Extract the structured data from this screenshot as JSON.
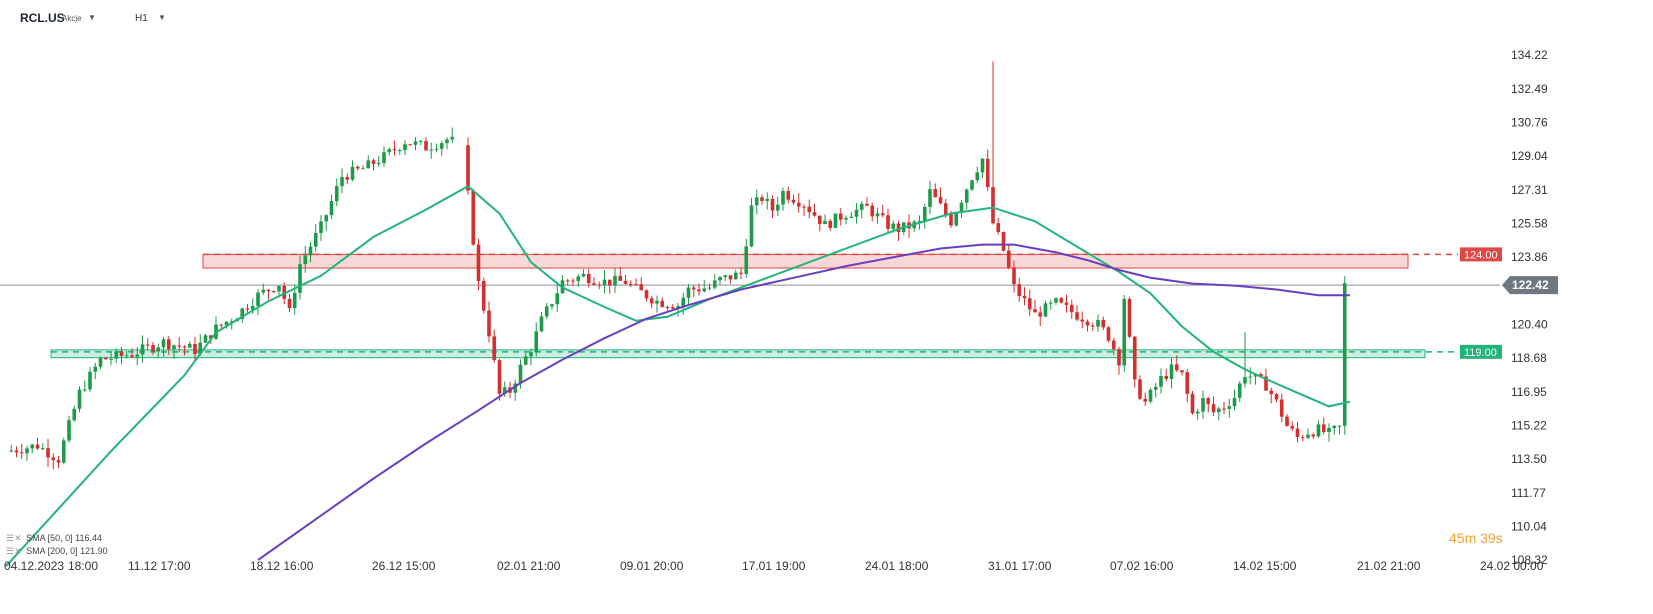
{
  "header": {
    "symbol": "RCL.US",
    "symbol_type": "Akcje",
    "timeframe": "H1"
  },
  "legend": [
    {
      "label": "SMA [50, 0] 116.44"
    },
    {
      "label": "SMA [200, 0] 121.90"
    }
  ],
  "timer": "45m 39s",
  "colors": {
    "up": "#1f9a4a",
    "down": "#d32f2f",
    "sma50": "#22b47a",
    "sma200": "#6a3fbf",
    "resistance": "#e04848",
    "support": "#22b47a",
    "price_tag": "#6f7780"
  },
  "chart_data": {
    "type": "candlestick",
    "ylim": [
      108.32,
      135.0
    ],
    "y_ticks": [
      "134.22",
      "132.49",
      "130.76",
      "129.04",
      "127.31",
      "125.58",
      "123.86",
      "122.42",
      "120.40",
      "118.68",
      "116.95",
      "115.22",
      "113.50",
      "111.77",
      "110.04",
      "108.32"
    ],
    "x_ticks": [
      "04.12.2023",
      "18:00",
      "11.12 17:00",
      "18.12 16:00",
      "26.12 15:00",
      "02.01 21:00",
      "09.01 20:00",
      "17.01 19:00",
      "24.01 18:00",
      "31.01 17:00",
      "07.02 16:00",
      "14.02 15:00",
      "21.02 21:00",
      "24.02 00:00"
    ],
    "current_price": "122.42",
    "levels": [
      {
        "label": "124.00",
        "value": 124.0,
        "zone": [
          123.3,
          124.0
        ],
        "kind": "resistance"
      },
      {
        "label": "119.00",
        "value": 119.0,
        "zone": [
          118.7,
          119.1
        ],
        "kind": "support"
      }
    ],
    "close_path": [
      [
        0,
        113.9
      ],
      [
        6,
        114.2
      ],
      [
        10,
        113.5
      ],
      [
        14,
        116.9
      ],
      [
        18,
        118.6
      ],
      [
        24,
        118.9
      ],
      [
        30,
        119.5
      ],
      [
        36,
        119.1
      ],
      [
        40,
        120.2
      ],
      [
        44,
        120.9
      ],
      [
        48,
        121.9
      ],
      [
        52,
        122.5
      ],
      [
        54,
        121.0
      ],
      [
        56,
        123.5
      ],
      [
        60,
        125.4
      ],
      [
        64,
        128.0
      ],
      [
        68,
        128.4
      ],
      [
        72,
        129.0
      ],
      [
        76,
        129.8
      ],
      [
        80,
        129.5
      ],
      [
        84,
        129.9
      ],
      [
        87,
        129.6
      ],
      [
        88,
        127.0
      ],
      [
        90,
        122.5
      ],
      [
        92,
        120.0
      ],
      [
        94,
        116.8
      ],
      [
        96,
        117.0
      ],
      [
        98,
        118.2
      ],
      [
        100,
        119.2
      ],
      [
        102,
        120.6
      ],
      [
        106,
        122.6
      ],
      [
        110,
        122.9
      ],
      [
        114,
        122.6
      ],
      [
        118,
        122.6
      ],
      [
        120,
        122.2
      ],
      [
        124,
        121.6
      ],
      [
        128,
        121.4
      ],
      [
        130,
        122.2
      ],
      [
        134,
        122.3
      ],
      [
        136,
        122.7
      ],
      [
        140,
        123.0
      ],
      [
        142,
        126.4
      ],
      [
        144,
        126.9
      ],
      [
        146,
        126.3
      ],
      [
        148,
        127.2
      ],
      [
        152,
        126.6
      ],
      [
        156,
        125.5
      ],
      [
        160,
        126.1
      ],
      [
        164,
        126.4
      ],
      [
        168,
        125.5
      ],
      [
        170,
        125.3
      ],
      [
        174,
        125.6
      ],
      [
        176,
        127.2
      ],
      [
        180,
        125.7
      ],
      [
        184,
        128.0
      ],
      [
        186,
        128.9
      ],
      [
        188,
        125.6
      ],
      [
        190,
        124.2
      ],
      [
        192,
        122.3
      ],
      [
        196,
        120.9
      ],
      [
        200,
        121.5
      ],
      [
        204,
        120.9
      ],
      [
        208,
        120.4
      ],
      [
        210,
        119.8
      ],
      [
        212,
        118.6
      ],
      [
        213,
        121.8
      ],
      [
        215,
        117.3
      ],
      [
        217,
        116.4
      ],
      [
        220,
        117.6
      ],
      [
        222,
        118.1
      ],
      [
        224,
        117.8
      ],
      [
        226,
        115.8
      ],
      [
        228,
        116.5
      ],
      [
        230,
        115.9
      ],
      [
        232,
        116.2
      ],
      [
        234,
        116.7
      ],
      [
        236,
        117.9
      ],
      [
        238,
        117.6
      ],
      [
        240,
        117.3
      ],
      [
        242,
        116.4
      ],
      [
        244,
        115.2
      ],
      [
        246,
        114.6
      ],
      [
        248,
        114.9
      ],
      [
        250,
        115.0
      ],
      [
        252,
        114.8
      ],
      [
        254,
        115.1
      ],
      [
        255,
        122.42
      ]
    ],
    "spikes": [
      {
        "i": 188,
        "high": 133.9
      },
      {
        "i": 236,
        "high": 120.0
      }
    ],
    "series": [
      {
        "name": "SMA [50, 0]",
        "points": [
          [
            0,
            108.0
          ],
          [
            20,
            113.9
          ],
          [
            34,
            117.8
          ],
          [
            40,
            120.0
          ],
          [
            50,
            121.6
          ],
          [
            60,
            122.9
          ],
          [
            70,
            124.9
          ],
          [
            80,
            126.3
          ],
          [
            88,
            127.5
          ],
          [
            94,
            126.1
          ],
          [
            100,
            123.6
          ],
          [
            106,
            122.3
          ],
          [
            114,
            121.3
          ],
          [
            120,
            120.6
          ],
          [
            126,
            120.8
          ],
          [
            134,
            121.7
          ],
          [
            140,
            122.3
          ],
          [
            150,
            123.3
          ],
          [
            160,
            124.3
          ],
          [
            170,
            125.3
          ],
          [
            180,
            126.1
          ],
          [
            188,
            126.4
          ],
          [
            196,
            125.7
          ],
          [
            204,
            124.4
          ],
          [
            212,
            123.1
          ],
          [
            218,
            122.0
          ],
          [
            224,
            120.3
          ],
          [
            230,
            119.0
          ],
          [
            236,
            118.1
          ],
          [
            240,
            117.6
          ],
          [
            246,
            116.9
          ],
          [
            252,
            116.2
          ],
          [
            256,
            116.44
          ]
        ]
      },
      {
        "name": "SMA [200, 0]",
        "points": [
          [
            48,
            108.32
          ],
          [
            60,
            110.6
          ],
          [
            70,
            112.5
          ],
          [
            80,
            114.3
          ],
          [
            90,
            116.0
          ],
          [
            98,
            117.4
          ],
          [
            106,
            118.6
          ],
          [
            114,
            119.7
          ],
          [
            122,
            120.7
          ],
          [
            130,
            121.4
          ],
          [
            140,
            122.2
          ],
          [
            150,
            122.8
          ],
          [
            160,
            123.4
          ],
          [
            170,
            123.9
          ],
          [
            178,
            124.3
          ],
          [
            186,
            124.5
          ],
          [
            192,
            124.5
          ],
          [
            200,
            124.1
          ],
          [
            206,
            123.7
          ],
          [
            212,
            123.2
          ],
          [
            218,
            122.8
          ],
          [
            226,
            122.5
          ],
          [
            234,
            122.4
          ],
          [
            242,
            122.2
          ],
          [
            250,
            121.9
          ],
          [
            256,
            121.9
          ]
        ]
      }
    ]
  }
}
